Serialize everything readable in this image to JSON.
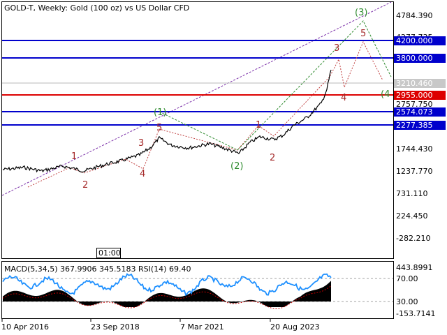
{
  "header": {
    "title": "GOLD-T, Weekly:  Gold (100 oz) vs US Dollar CFD"
  },
  "colors": {
    "background": "#ffffff",
    "grid": "#c0c0c0",
    "price_line": "#000000",
    "level_blue": "#0000cc",
    "level_red": "#dd0000",
    "wave_red": "#a52a2a",
    "wave_green": "#2e8b2e",
    "channel_purple": "#7a2ea8",
    "macd_histogram": "#000000",
    "rsi_line": "#1e90ff"
  },
  "price_axis": {
    "labels": [
      "4784.390",
      "4277.735",
      "3210.460",
      "2757.750",
      "1744.430",
      "1237.770",
      "731.110",
      "224.450",
      "-282.210"
    ]
  },
  "levels": [
    {
      "value": "4200.000",
      "color": "blue"
    },
    {
      "value": "3800.000",
      "color": "blue"
    },
    {
      "value": "3210.460",
      "color": "gray"
    },
    {
      "value": "2955.000",
      "color": "red"
    },
    {
      "value": "2574.073",
      "color": "blue"
    },
    {
      "value": "2277.385",
      "color": "blue"
    }
  ],
  "time_axis": {
    "labels": [
      "10 Apr 2016",
      "23 Sep 2018",
      "7 Mar 2021",
      "20 Aug 2023"
    ]
  },
  "timestamp_label": "01:00",
  "wave_labels": {
    "red": [
      "1",
      "2",
      "3",
      "4",
      "5",
      "1",
      "2",
      "3",
      "4",
      "5"
    ],
    "green": [
      "(1)",
      "(2)",
      "(3)",
      "(4"
    ]
  },
  "indicator": {
    "title": "MACD(5,34,5) 367.9906 345.5183 RSI(14) 69.40",
    "labels": [
      "443.8991",
      "70.00",
      "30.00",
      "-153.7141"
    ]
  }
}
